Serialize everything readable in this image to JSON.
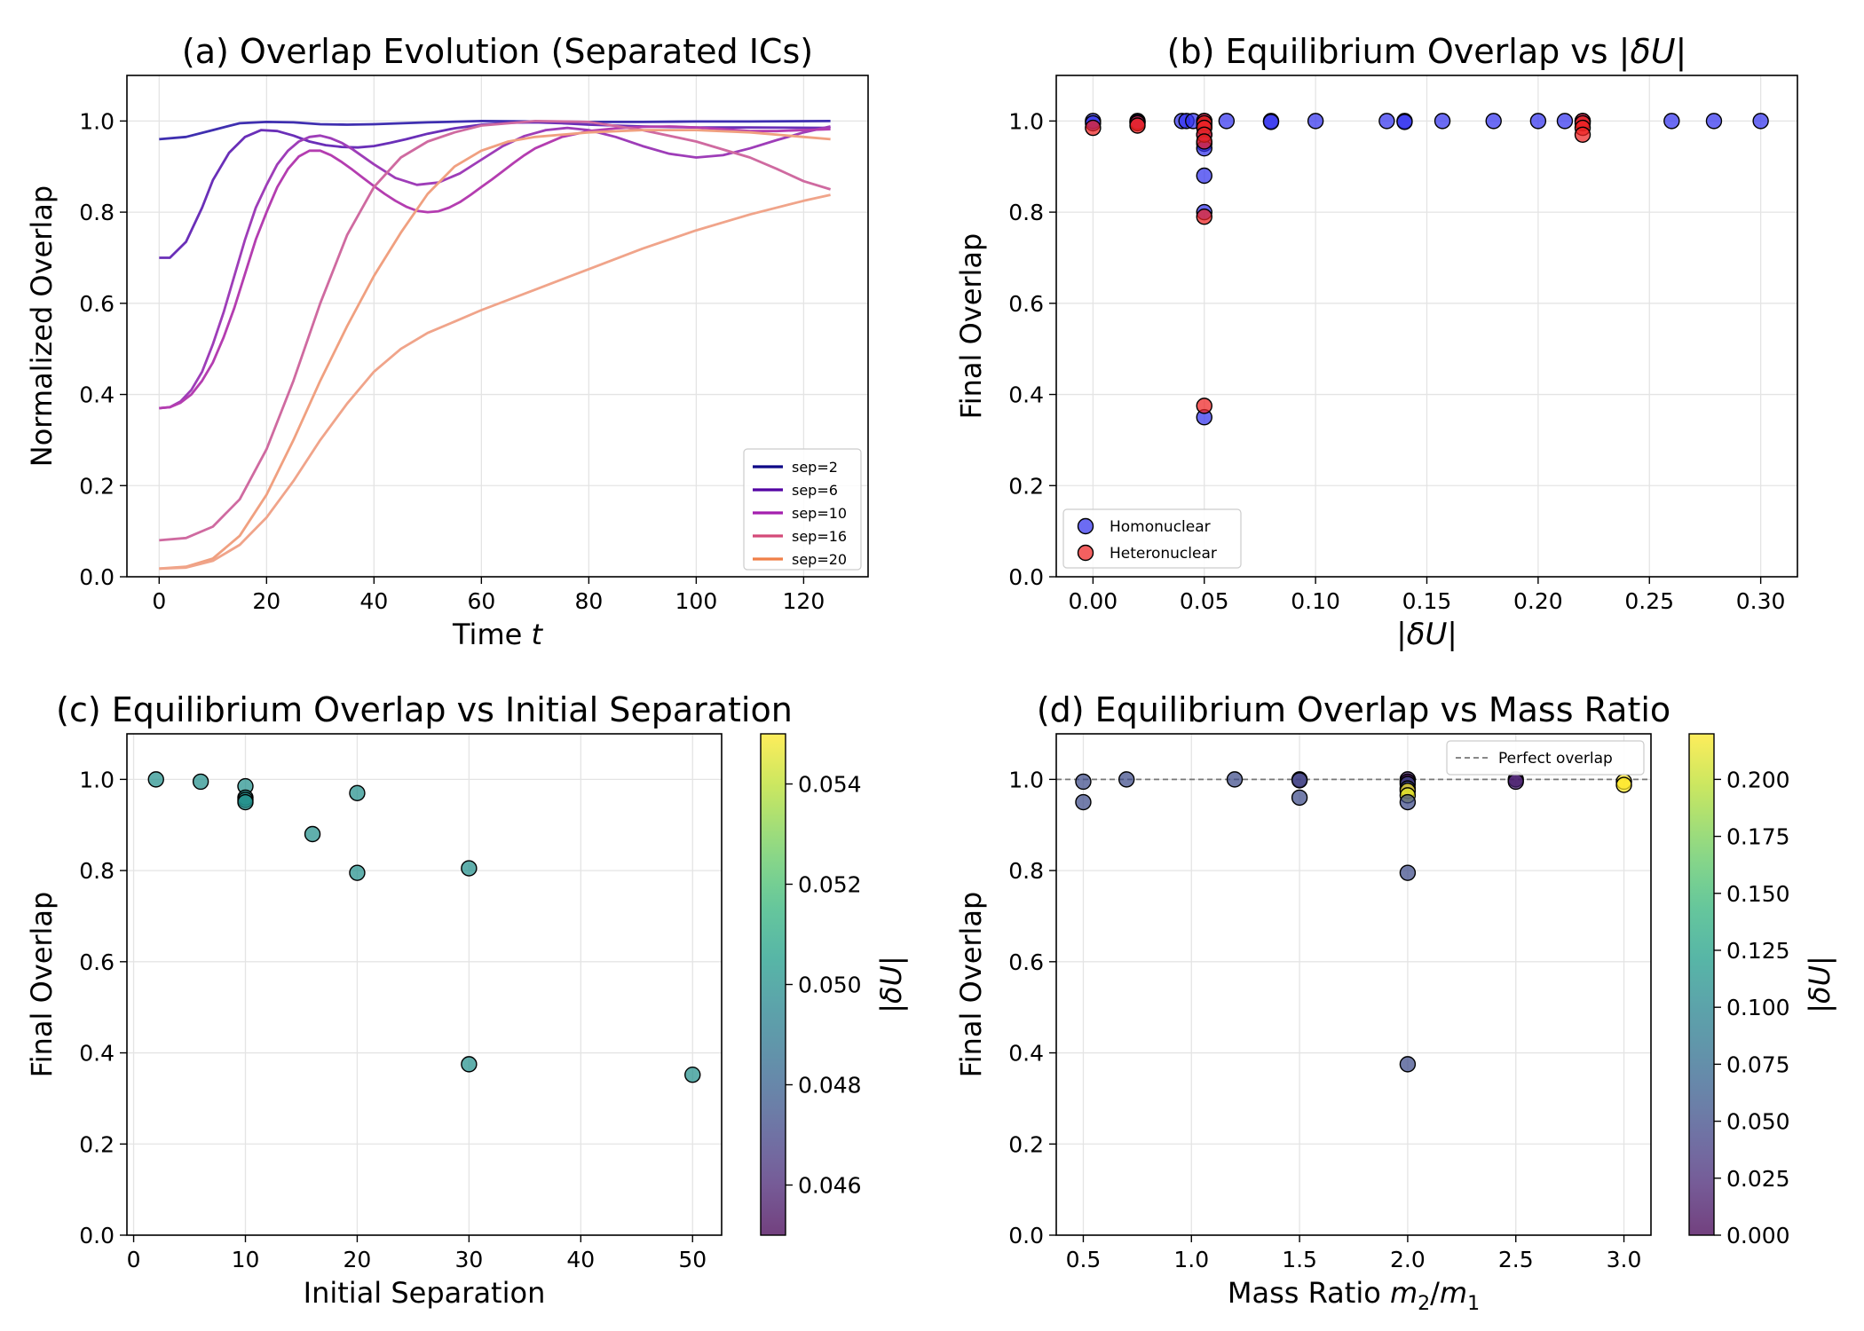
{
  "chart_data": [
    {
      "id": "a",
      "type": "line",
      "title": "(a) Overlap Evolution (Separated ICs)",
      "xlabel": "Time",
      "xlabel_var": "t",
      "ylabel": "Normalized Overlap",
      "xlim": [
        -6,
        132
      ],
      "ylim": [
        0,
        1.1
      ],
      "xticks": [
        0,
        20,
        40,
        60,
        80,
        100,
        120
      ],
      "yticks": [
        0.0,
        0.2,
        0.4,
        0.6,
        0.8,
        1.0
      ],
      "ytick_labels": [
        "0.0",
        "0.2",
        "0.4",
        "0.6",
        "0.8",
        "1.0"
      ],
      "grid": true,
      "legend_position": "lower-right",
      "legend": [
        {
          "label": "sep=2",
          "color": "#0d0887"
        },
        {
          "label": "sep=6",
          "color": "#5302a3"
        },
        {
          "label": "sep=10",
          "color": "#a41fae"
        },
        {
          "label": "sep=16",
          "color": "#d44a79"
        },
        {
          "label": "sep=20",
          "color": "#f07f48"
        }
      ],
      "series": [
        {
          "name": "sep=2 #1",
          "color": "#3f2fb0",
          "x": [
            0,
            5,
            10,
            15,
            20,
            25,
            30,
            35,
            40,
            50,
            60,
            70,
            80,
            90,
            100,
            110,
            125
          ],
          "y": [
            0.96,
            0.965,
            0.98,
            0.995,
            0.998,
            0.997,
            0.993,
            0.992,
            0.993,
            0.997,
            1.0,
            0.999,
            0.998,
            0.998,
            0.999,
            0.999,
            1.0
          ]
        },
        {
          "name": "sep=6 #1",
          "color": "#6a2fb8",
          "x": [
            0,
            2,
            5,
            8,
            10,
            13,
            16,
            19,
            22,
            25,
            28,
            31,
            34,
            37,
            40,
            43,
            46,
            50,
            55,
            60,
            65,
            70,
            75,
            80,
            90,
            100,
            110,
            125
          ],
          "y": [
            0.7,
            0.7,
            0.735,
            0.81,
            0.87,
            0.93,
            0.965,
            0.98,
            0.978,
            0.968,
            0.955,
            0.947,
            0.943,
            0.942,
            0.945,
            0.952,
            0.96,
            0.972,
            0.984,
            0.992,
            0.996,
            0.997,
            0.995,
            0.992,
            0.988,
            0.986,
            0.986,
            0.985
          ]
        },
        {
          "name": "sep=10 #1",
          "color": "#9e3db8",
          "x": [
            0,
            2,
            4,
            6,
            8,
            10,
            12,
            14,
            16,
            18,
            20,
            22,
            24,
            26,
            28,
            30,
            32,
            34,
            36,
            40,
            44,
            48,
            52,
            56,
            60,
            64,
            68,
            72,
            76,
            80,
            85,
            90,
            95,
            100,
            105,
            110,
            115,
            120,
            125
          ],
          "y": [
            0.37,
            0.372,
            0.385,
            0.41,
            0.45,
            0.51,
            0.58,
            0.66,
            0.74,
            0.81,
            0.86,
            0.905,
            0.935,
            0.955,
            0.965,
            0.968,
            0.962,
            0.952,
            0.938,
            0.905,
            0.875,
            0.86,
            0.865,
            0.885,
            0.915,
            0.945,
            0.967,
            0.98,
            0.985,
            0.98,
            0.965,
            0.945,
            0.928,
            0.92,
            0.925,
            0.94,
            0.958,
            0.975,
            0.988
          ]
        },
        {
          "name": "sep=10 #2",
          "color": "#b43db0",
          "x": [
            0,
            2,
            4,
            6,
            8,
            10,
            12,
            14,
            16,
            18,
            20,
            22,
            24,
            26,
            28,
            30,
            32,
            34,
            36,
            38,
            40,
            42,
            44,
            46,
            48,
            50,
            52,
            54,
            56,
            58,
            60,
            62,
            64,
            66,
            68,
            70,
            75,
            80,
            85,
            90,
            95,
            100,
            105,
            110,
            115,
            120,
            125
          ],
          "y": [
            0.37,
            0.372,
            0.382,
            0.4,
            0.43,
            0.47,
            0.525,
            0.59,
            0.665,
            0.74,
            0.8,
            0.855,
            0.895,
            0.922,
            0.935,
            0.935,
            0.925,
            0.91,
            0.893,
            0.875,
            0.857,
            0.84,
            0.825,
            0.812,
            0.803,
            0.8,
            0.802,
            0.81,
            0.822,
            0.838,
            0.855,
            0.872,
            0.89,
            0.908,
            0.925,
            0.94,
            0.965,
            0.978,
            0.984,
            0.987,
            0.988,
            0.986,
            0.982,
            0.978,
            0.978,
            0.98,
            0.982
          ]
        },
        {
          "name": "sep=16 #1",
          "color": "#cf6aa0",
          "x": [
            0,
            5,
            10,
            15,
            20,
            25,
            30,
            35,
            40,
            45,
            50,
            55,
            60,
            70,
            80,
            90,
            100,
            110,
            115,
            120,
            125
          ],
          "y": [
            0.08,
            0.085,
            0.11,
            0.17,
            0.28,
            0.43,
            0.6,
            0.75,
            0.855,
            0.92,
            0.955,
            0.975,
            0.99,
            1.0,
            0.998,
            0.98,
            0.955,
            0.92,
            0.895,
            0.868,
            0.85
          ]
        },
        {
          "name": "sep=20 #1",
          "color": "#f0a080",
          "x": [
            0,
            5,
            10,
            15,
            20,
            25,
            30,
            35,
            40,
            45,
            50,
            55,
            60,
            65,
            70,
            80,
            90,
            100,
            110,
            120,
            125
          ],
          "y": [
            0.018,
            0.022,
            0.04,
            0.09,
            0.18,
            0.3,
            0.43,
            0.55,
            0.66,
            0.755,
            0.84,
            0.9,
            0.935,
            0.955,
            0.965,
            0.975,
            0.98,
            0.98,
            0.975,
            0.965,
            0.96
          ]
        },
        {
          "name": "sep=20 #2",
          "color": "#f0a48a",
          "x": [
            0,
            5,
            10,
            15,
            20,
            25,
            30,
            35,
            40,
            45,
            50,
            55,
            60,
            70,
            80,
            90,
            100,
            110,
            120,
            125
          ],
          "y": [
            0.018,
            0.02,
            0.035,
            0.07,
            0.13,
            0.21,
            0.3,
            0.38,
            0.45,
            0.5,
            0.535,
            0.56,
            0.585,
            0.63,
            0.675,
            0.72,
            0.76,
            0.795,
            0.825,
            0.838
          ]
        }
      ]
    },
    {
      "id": "b",
      "type": "scatter",
      "title": "(b) Equilibrium Overlap vs |δU|",
      "title_prefix": "(b) Equilibrium Overlap vs |",
      "title_var": "δU",
      "title_suffix": "|",
      "xlabel": "|δU|",
      "xlabel_prefix": "|",
      "xlabel_var": "δU",
      "xlabel_suffix": "|",
      "ylabel": "Final Overlap",
      "xlim": [
        -0.0165,
        0.3165
      ],
      "ylim": [
        0,
        1.1
      ],
      "xticks": [
        0.0,
        0.05,
        0.1,
        0.15,
        0.2,
        0.25,
        0.3
      ],
      "xtick_labels": [
        "0.00",
        "0.05",
        "0.10",
        "0.15",
        "0.20",
        "0.25",
        "0.30"
      ],
      "yticks": [
        0.0,
        0.2,
        0.4,
        0.6,
        0.8,
        1.0
      ],
      "ytick_labels": [
        "0.0",
        "0.2",
        "0.4",
        "0.6",
        "0.8",
        "1.0"
      ],
      "grid": true,
      "legend_position": "lower-left",
      "legend": [
        {
          "label": "Homonuclear",
          "color": "#3333ee"
        },
        {
          "label": "Heteronuclear",
          "color": "#ee2222"
        }
      ],
      "series": [
        {
          "name": "Homonuclear",
          "color": "#3333ee",
          "points": [
            [
              0.0,
              1.0
            ],
            [
              0.0,
              0.995
            ],
            [
              0.02,
              1.0
            ],
            [
              0.02,
              0.998
            ],
            [
              0.04,
              1.0
            ],
            [
              0.042,
              1.0
            ],
            [
              0.045,
              1.0
            ],
            [
              0.05,
              1.0
            ],
            [
              0.05,
              0.99
            ],
            [
              0.05,
              0.97
            ],
            [
              0.05,
              0.95
            ],
            [
              0.05,
              0.94
            ],
            [
              0.05,
              0.88
            ],
            [
              0.05,
              0.8
            ],
            [
              0.05,
              0.35
            ],
            [
              0.06,
              1.0
            ],
            [
              0.08,
              1.0
            ],
            [
              0.08,
              0.998
            ],
            [
              0.1,
              1.0
            ],
            [
              0.132,
              1.0
            ],
            [
              0.14,
              1.0
            ],
            [
              0.14,
              0.998
            ],
            [
              0.157,
              1.0
            ],
            [
              0.18,
              1.0
            ],
            [
              0.2,
              1.0
            ],
            [
              0.212,
              1.0
            ],
            [
              0.22,
              1.0
            ],
            [
              0.26,
              1.0
            ],
            [
              0.279,
              1.0
            ],
            [
              0.3,
              1.0
            ]
          ]
        },
        {
          "name": "Heteronuclear",
          "color": "#ee2222",
          "points": [
            [
              0.0,
              0.985
            ],
            [
              0.02,
              0.995
            ],
            [
              0.02,
              0.99
            ],
            [
              0.05,
              1.0
            ],
            [
              0.05,
              0.995
            ],
            [
              0.05,
              0.985
            ],
            [
              0.05,
              0.97
            ],
            [
              0.05,
              0.955
            ],
            [
              0.05,
              0.79
            ],
            [
              0.05,
              0.375
            ],
            [
              0.22,
              1.0
            ],
            [
              0.22,
              0.995
            ],
            [
              0.22,
              0.985
            ],
            [
              0.22,
              0.97
            ]
          ]
        }
      ]
    },
    {
      "id": "c",
      "type": "scatter",
      "title": "(c) Equilibrium Overlap vs Initial Separation",
      "xlabel": "Initial Separation",
      "ylabel": "Final Overlap",
      "xlim": [
        -0.6,
        52.6
      ],
      "ylim": [
        0,
        1.1
      ],
      "xticks": [
        0,
        10,
        20,
        30,
        40,
        50
      ],
      "yticks": [
        0.0,
        0.2,
        0.4,
        0.6,
        0.8,
        1.0
      ],
      "ytick_labels": [
        "0.0",
        "0.2",
        "0.4",
        "0.6",
        "0.8",
        "1.0"
      ],
      "grid": true,
      "colorbar": {
        "label": "|δU|",
        "label_prefix": "|",
        "label_var": "δU",
        "label_suffix": "|",
        "range": [
          0.045,
          0.055
        ],
        "ticks": [
          0.046,
          0.048,
          0.05,
          0.052,
          0.054
        ],
        "tick_labels": [
          "0.046",
          "0.048",
          "0.050",
          "0.052",
          "0.054"
        ],
        "colormap": "viridis"
      },
      "points": [
        {
          "x": 2,
          "y": 1.0,
          "c": 0.05
        },
        {
          "x": 6,
          "y": 0.995,
          "c": 0.05
        },
        {
          "x": 10,
          "y": 0.985,
          "c": 0.05
        },
        {
          "x": 10,
          "y": 0.96,
          "c": 0.05
        },
        {
          "x": 10,
          "y": 0.955,
          "c": 0.05
        },
        {
          "x": 10,
          "y": 0.95,
          "c": 0.05
        },
        {
          "x": 16,
          "y": 0.88,
          "c": 0.05
        },
        {
          "x": 20,
          "y": 0.97,
          "c": 0.05
        },
        {
          "x": 20,
          "y": 0.795,
          "c": 0.05
        },
        {
          "x": 30,
          "y": 0.805,
          "c": 0.05
        },
        {
          "x": 30,
          "y": 0.375,
          "c": 0.05
        },
        {
          "x": 50,
          "y": 0.352,
          "c": 0.05
        }
      ]
    },
    {
      "id": "d",
      "type": "scatter",
      "title": "(d) Equilibrium Overlap vs Mass Ratio",
      "xlabel": "Mass Ratio m₂/m₁",
      "xlabel_prefix": "Mass Ratio ",
      "xlabel_var": "m",
      "xlabel_sub1": "2",
      "xlabel_slash": "/",
      "xlabel_var2": "m",
      "xlabel_sub2": "1",
      "ylabel": "Final Overlap",
      "xlim": [
        0.375,
        3.125
      ],
      "ylim": [
        0,
        1.1
      ],
      "xticks": [
        0.5,
        1.0,
        1.5,
        2.0,
        2.5,
        3.0
      ],
      "xtick_labels": [
        "0.5",
        "1.0",
        "1.5",
        "2.0",
        "2.5",
        "3.0"
      ],
      "yticks": [
        0.0,
        0.2,
        0.4,
        0.6,
        0.8,
        1.0
      ],
      "ytick_labels": [
        "0.0",
        "0.2",
        "0.4",
        "0.6",
        "0.8",
        "1.0"
      ],
      "grid": true,
      "reference_line": {
        "y": 1.0,
        "label": "Perfect overlap",
        "style": "dashed"
      },
      "legend_position": "top-right",
      "colorbar": {
        "label": "|δU|",
        "label_prefix": "|",
        "label_var": "δU",
        "label_suffix": "|",
        "range": [
          0.0,
          0.22
        ],
        "ticks": [
          0.0,
          0.025,
          0.05,
          0.075,
          0.1,
          0.125,
          0.15,
          0.175,
          0.2
        ],
        "tick_labels": [
          "0.000",
          "0.025",
          "0.050",
          "0.075",
          "0.100",
          "0.125",
          "0.150",
          "0.175",
          "0.200"
        ],
        "colormap": "viridis"
      },
      "points": [
        {
          "x": 0.5,
          "y": 0.995,
          "c": 0.05
        },
        {
          "x": 0.5,
          "y": 0.95,
          "c": 0.05
        },
        {
          "x": 0.7,
          "y": 1.0,
          "c": 0.05
        },
        {
          "x": 1.2,
          "y": 1.0,
          "c": 0.05
        },
        {
          "x": 1.5,
          "y": 1.0,
          "c": 0.05
        },
        {
          "x": 1.5,
          "y": 0.998,
          "c": 0.04
        },
        {
          "x": 1.5,
          "y": 0.96,
          "c": 0.05
        },
        {
          "x": 2.0,
          "y": 1.0,
          "c": 0.02
        },
        {
          "x": 2.0,
          "y": 0.995,
          "c": 0.0
        },
        {
          "x": 2.0,
          "y": 0.99,
          "c": 0.05
        },
        {
          "x": 2.0,
          "y": 0.98,
          "c": 0.05
        },
        {
          "x": 2.0,
          "y": 0.975,
          "c": 0.22
        },
        {
          "x": 2.0,
          "y": 0.965,
          "c": 0.21
        },
        {
          "x": 2.0,
          "y": 0.95,
          "c": 0.05
        },
        {
          "x": 2.0,
          "y": 0.795,
          "c": 0.05
        },
        {
          "x": 2.0,
          "y": 0.375,
          "c": 0.05
        },
        {
          "x": 2.5,
          "y": 1.0,
          "c": 0.0
        },
        {
          "x": 2.5,
          "y": 0.995,
          "c": 0.02
        },
        {
          "x": 3.0,
          "y": 0.995,
          "c": 0.22
        },
        {
          "x": 3.0,
          "y": 0.988,
          "c": 0.22
        }
      ]
    }
  ]
}
